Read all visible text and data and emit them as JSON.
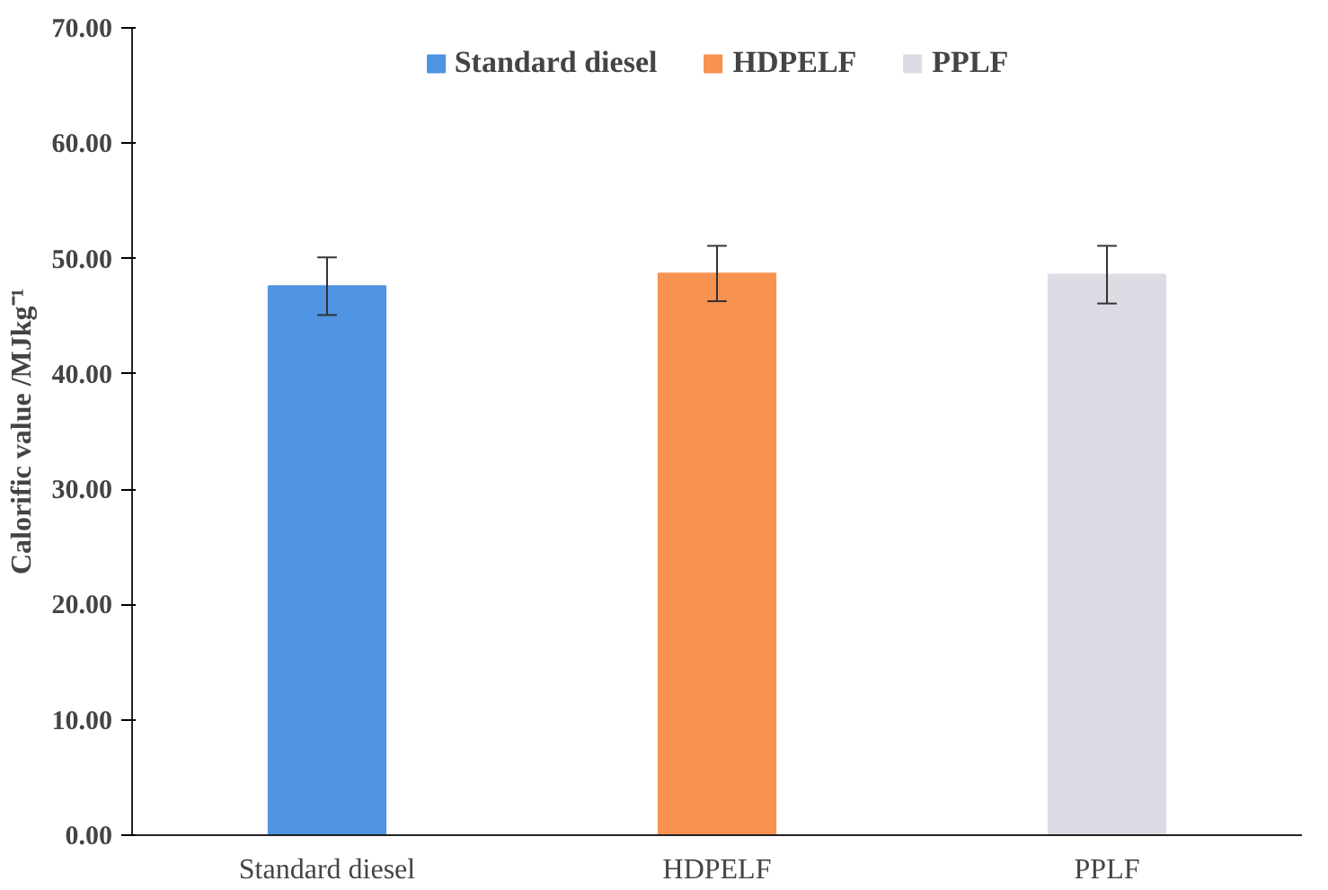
{
  "chart_data": {
    "type": "bar",
    "ylabel": "Calorific value /MJkg⁻¹",
    "categories": [
      "Standard diesel",
      "HDPELF",
      "PPLF"
    ],
    "series": [
      {
        "name": "Standard diesel",
        "color": "#4f94e0",
        "values": [
          47.6,
          null,
          null
        ],
        "errors": [
          2.5,
          null,
          null
        ]
      },
      {
        "name": "HDPELF",
        "color": "#f79250",
        "values": [
          null,
          48.7,
          null
        ],
        "errors": [
          null,
          2.4,
          null
        ]
      },
      {
        "name": "PPLF",
        "color": "#dcdce4",
        "values": [
          null,
          null,
          48.6
        ],
        "errors": [
          null,
          null,
          2.5
        ]
      }
    ],
    "ylim": [
      0,
      70
    ],
    "yticks": [
      {
        "value": 0,
        "label": "0.00"
      },
      {
        "value": 10,
        "label": "10.00"
      },
      {
        "value": 20,
        "label": "20.00"
      },
      {
        "value": 30,
        "label": "30.00"
      },
      {
        "value": 40,
        "label": "40.00"
      },
      {
        "value": 50,
        "label": "50.00"
      },
      {
        "value": 60,
        "label": "60.00"
      },
      {
        "value": 70,
        "label": "70.00"
      }
    ],
    "grid": false,
    "legend": "top"
  }
}
